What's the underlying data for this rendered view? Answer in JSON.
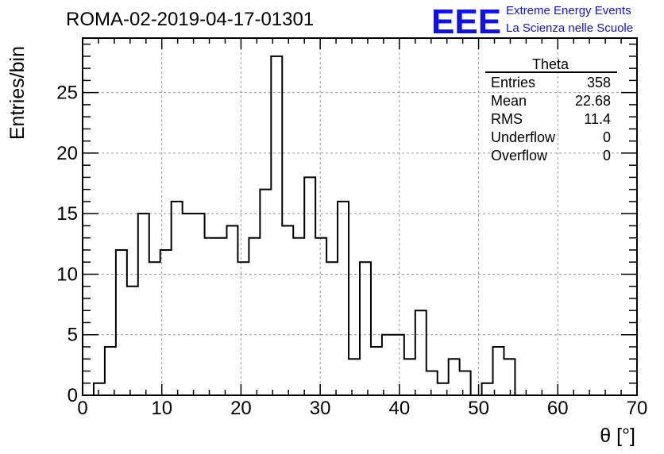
{
  "chart_data": {
    "type": "bar",
    "title": "ROMA-02-2019-04-17-01301",
    "xlabel": "θ [°]",
    "ylabel": "Entries/bin",
    "xlim": [
      0,
      70
    ],
    "ylim": [
      0,
      29.5
    ],
    "grid": true,
    "bin_width": 1.4,
    "x_ticks": [
      "0",
      "10",
      "20",
      "30",
      "40",
      "50",
      "60",
      "70"
    ],
    "y_ticks": [
      "0",
      "5",
      "10",
      "15",
      "20",
      "25"
    ],
    "x_tick_values": [
      0,
      10,
      20,
      30,
      40,
      50,
      60,
      70
    ],
    "y_tick_values": [
      0,
      5,
      10,
      15,
      20,
      25
    ],
    "bin_edges_start": 0,
    "values": [
      0,
      1,
      4,
      12,
      9,
      15,
      11,
      12,
      16,
      15,
      15,
      13,
      13,
      14,
      11,
      13,
      17,
      28,
      14,
      13,
      18,
      13,
      11,
      16,
      3,
      11,
      4,
      5,
      5,
      3,
      7,
      2,
      1,
      3,
      2,
      0,
      1,
      4,
      3,
      0,
      0,
      0,
      0,
      0,
      0,
      0,
      0,
      0,
      0,
      0
    ]
  },
  "stats_box": {
    "title": "Theta",
    "rows": [
      {
        "label": "Entries",
        "value": "358"
      },
      {
        "label": "Mean",
        "value": "22.68"
      },
      {
        "label": "RMS",
        "value": "11.4"
      },
      {
        "label": "Underflow",
        "value": "0"
      },
      {
        "label": "Overflow",
        "value": "0"
      }
    ]
  },
  "logo": {
    "text": "EEE",
    "line1": "Extreme Energy Events",
    "line2": "La Scienza nelle Scuole",
    "color": "#1010ee"
  }
}
